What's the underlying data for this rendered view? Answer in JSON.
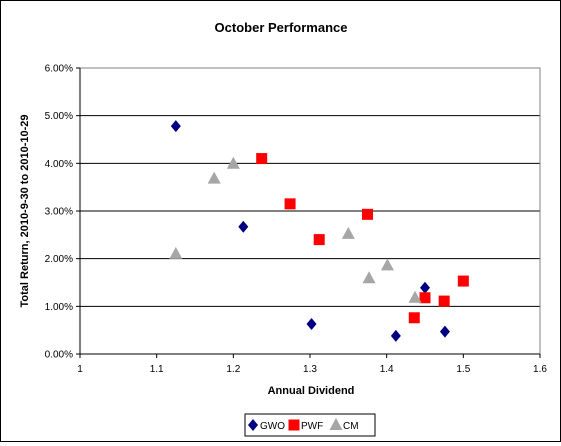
{
  "chart_data": {
    "type": "scatter",
    "title": "October Performance",
    "xlabel": "Annual Dividend",
    "ylabel": "Total Return, 2010-9-30 to 2010-10-29",
    "xlim": [
      1,
      1.6
    ],
    "ylim": [
      0,
      6
    ],
    "x_ticks": [
      "1",
      "1.1",
      "1.2",
      "1.3",
      "1.4",
      "1.5",
      "1.6"
    ],
    "y_ticks": [
      "0.00%",
      "1.00%",
      "2.00%",
      "3.00%",
      "4.00%",
      "5.00%",
      "6.00%"
    ],
    "grid": "horizontal",
    "legend_position": "bottom",
    "series": [
      {
        "name": "GWO",
        "marker": "diamond",
        "color": "#000080",
        "points": [
          {
            "x": 1.125,
            "y": 4.78
          },
          {
            "x": 1.213,
            "y": 2.67
          },
          {
            "x": 1.302,
            "y": 0.63
          },
          {
            "x": 1.412,
            "y": 0.38
          },
          {
            "x": 1.45,
            "y": 1.39
          },
          {
            "x": 1.476,
            "y": 0.47
          }
        ]
      },
      {
        "name": "PWF",
        "marker": "square",
        "color": "#FF0000",
        "points": [
          {
            "x": 1.237,
            "y": 4.1
          },
          {
            "x": 1.274,
            "y": 3.15
          },
          {
            "x": 1.312,
            "y": 2.4
          },
          {
            "x": 1.375,
            "y": 2.93
          },
          {
            "x": 1.436,
            "y": 0.76
          },
          {
            "x": 1.45,
            "y": 1.18
          },
          {
            "x": 1.475,
            "y": 1.11
          },
          {
            "x": 1.5,
            "y": 1.53
          }
        ]
      },
      {
        "name": "CM",
        "marker": "triangle",
        "color": "#A6A6A6",
        "points": [
          {
            "x": 1.125,
            "y": 2.1
          },
          {
            "x": 1.175,
            "y": 3.68
          },
          {
            "x": 1.2,
            "y": 3.99
          },
          {
            "x": 1.35,
            "y": 2.52
          },
          {
            "x": 1.377,
            "y": 1.59
          },
          {
            "x": 1.401,
            "y": 1.86
          },
          {
            "x": 1.437,
            "y": 1.18
          }
        ]
      }
    ]
  }
}
